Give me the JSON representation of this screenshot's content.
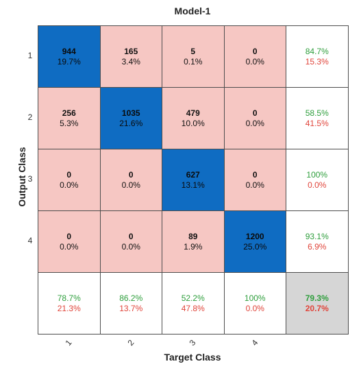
{
  "chart_data": {
    "type": "heatmap",
    "title": "Model-1",
    "xlabel": "Target Class",
    "ylabel": "Output Class",
    "classes": [
      "1",
      "2",
      "3",
      "4"
    ],
    "cells": [
      [
        {
          "count": "944",
          "pct": "19.7%"
        },
        {
          "count": "165",
          "pct": "3.4%"
        },
        {
          "count": "5",
          "pct": "0.1%"
        },
        {
          "count": "0",
          "pct": "0.0%"
        }
      ],
      [
        {
          "count": "256",
          "pct": "5.3%"
        },
        {
          "count": "1035",
          "pct": "21.6%"
        },
        {
          "count": "479",
          "pct": "10.0%"
        },
        {
          "count": "0",
          "pct": "0.0%"
        }
      ],
      [
        {
          "count": "0",
          "pct": "0.0%"
        },
        {
          "count": "0",
          "pct": "0.0%"
        },
        {
          "count": "627",
          "pct": "13.1%"
        },
        {
          "count": "0",
          "pct": "0.0%"
        }
      ],
      [
        {
          "count": "0",
          "pct": "0.0%"
        },
        {
          "count": "0",
          "pct": "0.0%"
        },
        {
          "count": "89",
          "pct": "1.9%"
        },
        {
          "count": "1200",
          "pct": "25.0%"
        }
      ]
    ],
    "row_summary": [
      {
        "correct": "84.7%",
        "wrong": "15.3%"
      },
      {
        "correct": "58.5%",
        "wrong": "41.5%"
      },
      {
        "correct": "100%",
        "wrong": "0.0%"
      },
      {
        "correct": "93.1%",
        "wrong": "6.9%"
      }
    ],
    "col_summary": [
      {
        "correct": "78.7%",
        "wrong": "21.3%"
      },
      {
        "correct": "86.2%",
        "wrong": "13.7%"
      },
      {
        "correct": "52.2%",
        "wrong": "47.8%"
      },
      {
        "correct": "100%",
        "wrong": "0.0%"
      }
    ],
    "overall": {
      "correct": "79.3%",
      "wrong": "20.7%"
    },
    "colors": {
      "diagonal": "#0f6cc2",
      "off_diagonal": "#f6c7c3",
      "total": "#d6d6d6",
      "correct_text": "#2e9e3c",
      "wrong_text": "#e0443a"
    }
  }
}
